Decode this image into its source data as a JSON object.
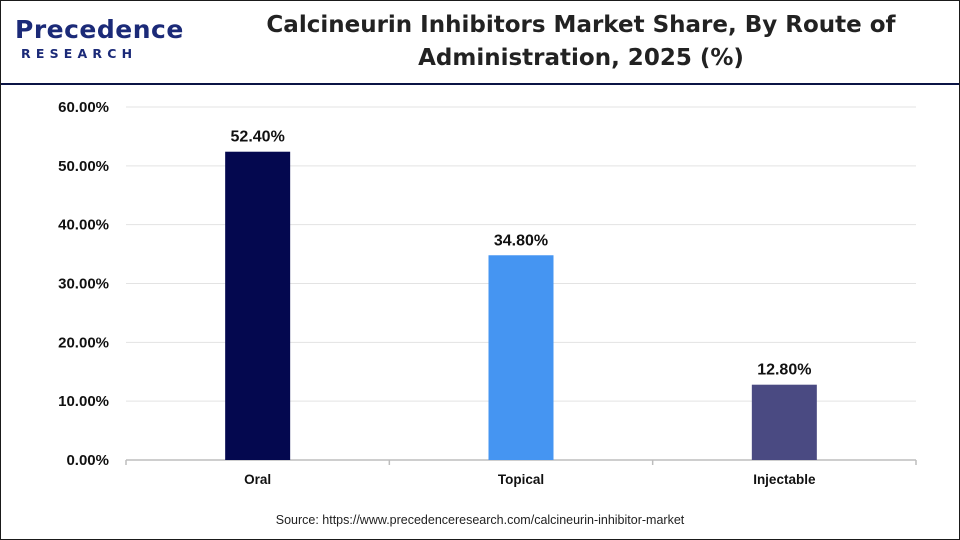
{
  "brand": {
    "logo_top": "Precedence",
    "logo_bottom": "RESEARCH",
    "color": "#1b2a78"
  },
  "source_text": "Source: https://www.precedenceresearch.com/calcineurin-inhibitor-market",
  "chart_data": {
    "type": "bar",
    "title": "Calcineurin Inhibitors Market Share, By Route of Administration, 2025 (%)",
    "title_lines": [
      "Calcineurin Inhibitors Market Share, By Route of",
      "Administration, 2025 (%)"
    ],
    "xlabel": "",
    "ylabel": "",
    "categories": [
      "Oral",
      "Topical",
      "Injectable"
    ],
    "values": [
      52.4,
      34.8,
      12.8
    ],
    "value_labels": [
      "52.40%",
      "34.80%",
      "12.80%"
    ],
    "colors": [
      "#04084f",
      "#4595f2",
      "#4a4a82"
    ],
    "ylim": [
      0,
      60
    ],
    "yticks": [
      0,
      10,
      20,
      30,
      40,
      50,
      60
    ],
    "ytick_labels": [
      "0.00%",
      "10.00%",
      "20.00%",
      "30.00%",
      "40.00%",
      "50.00%",
      "60.00%"
    ],
    "grid": true,
    "legend": "none"
  }
}
